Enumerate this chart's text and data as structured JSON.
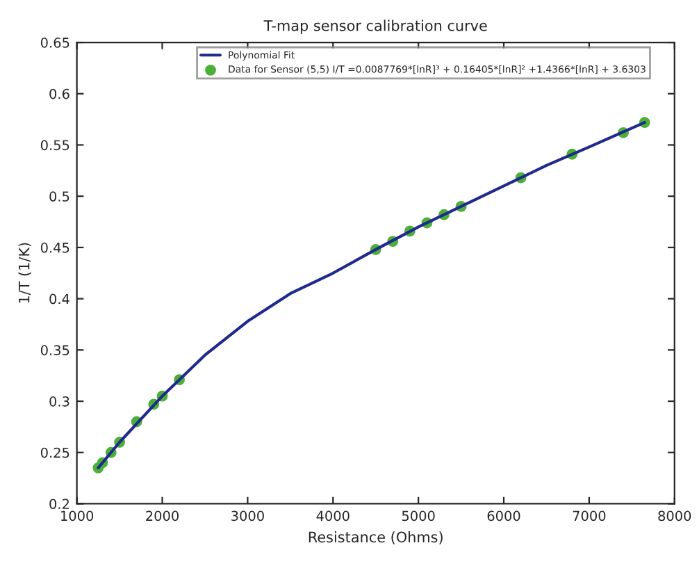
{
  "chart_data": {
    "type": "line",
    "title": "T-map sensor calibration curve",
    "xlabel": "Resistance (Ohms)",
    "ylabel": "1/T (1/K)",
    "xlim": [
      1000,
      8000
    ],
    "xticks": [
      1000,
      2000,
      3000,
      4000,
      5000,
      6000,
      7000,
      8000
    ],
    "ylim": [
      0.2,
      0.65
    ],
    "yticks": [
      0.2,
      0.25,
      0.3,
      0.35,
      0.4,
      0.45,
      0.5,
      0.55,
      0.6,
      0.65
    ],
    "grid": false,
    "legend": "top",
    "series": [
      {
        "name": "Polynomial Fit",
        "color": "#1f2a8c",
        "marker": "none",
        "x": [
          1250,
          1500,
          2000,
          2500,
          3000,
          3500,
          4000,
          4500,
          5000,
          5500,
          6000,
          6500,
          7000,
          7650
        ],
        "values": [
          0.235,
          0.26,
          0.305,
          0.345,
          0.378,
          0.405,
          0.425,
          0.448,
          0.47,
          0.49,
          0.51,
          0.53,
          0.548,
          0.572
        ]
      },
      {
        "name": "Data for Sensor (5,5) I/T =0.0087769*[lnR]³ + 0.16405*[lnR]² +1.4366*[lnR] + 3.6303",
        "type": "scatter",
        "color": "#4caf3a",
        "marker": "circle",
        "x": [
          1250,
          1300,
          1400,
          1500,
          1700,
          1900,
          2000,
          2200,
          4500,
          4700,
          4900,
          5100,
          5300,
          5500,
          6200,
          6800,
          7400,
          7650
        ],
        "values": [
          0.235,
          0.24,
          0.25,
          0.26,
          0.28,
          0.297,
          0.305,
          0.321,
          0.448,
          0.456,
          0.466,
          0.474,
          0.482,
          0.49,
          0.518,
          0.541,
          0.562,
          0.572
        ]
      }
    ]
  }
}
